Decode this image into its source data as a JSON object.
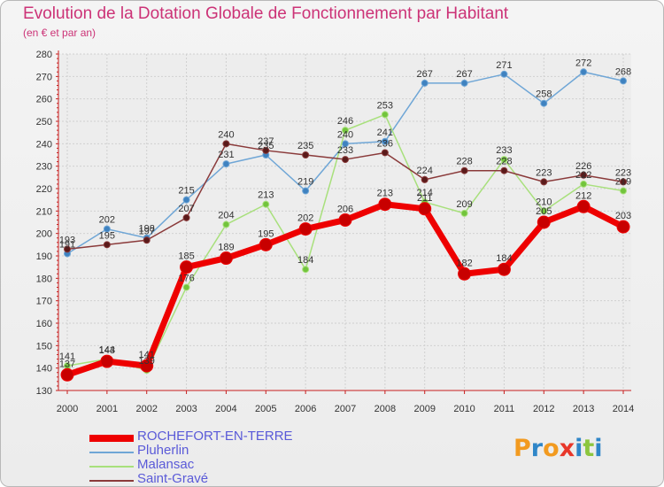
{
  "title": "Evolution de la Dotation Globale de Fonctionnement par Habitant",
  "subtitle": "(en € et par an)",
  "colors": {
    "title": "#cc3377",
    "axis": "#c81e1e",
    "grid": "#d0d0d0",
    "legend_text": "#5a5ad8"
  },
  "logo": {
    "text": "Proxiti",
    "letters": [
      {
        "char": "P",
        "color": "#f29a1f"
      },
      {
        "char": "r",
        "color": "#2f86c8"
      },
      {
        "char": "o",
        "color": "#f29a1f"
      },
      {
        "char": "x",
        "color": "#e8372a"
      },
      {
        "char": "i",
        "color": "#2f86c8"
      },
      {
        "char": "t",
        "color": "#8cc63f"
      },
      {
        "char": "i",
        "color": "#2f86c8"
      }
    ]
  },
  "chart_data": {
    "type": "line",
    "title": "Evolution de la Dotation Globale de Fonctionnement par Habitant",
    "subtitle": "(en € et par an)",
    "xlabel": "",
    "ylabel": "",
    "x": [
      2000,
      2001,
      2002,
      2003,
      2004,
      2005,
      2006,
      2007,
      2008,
      2009,
      2010,
      2011,
      2012,
      2013,
      2014
    ],
    "ylim": [
      130,
      280
    ],
    "yticks": [
      130,
      140,
      150,
      160,
      170,
      180,
      190,
      200,
      210,
      220,
      230,
      240,
      250,
      260,
      270,
      280
    ],
    "grid": true,
    "legend_position": "bottom-left",
    "series": [
      {
        "name": "ROCHEFORT-EN-TERRE",
        "color": "#ee0000",
        "marker_fill": "#c80000",
        "line_width": 7,
        "marker_r": 7,
        "values": [
          137,
          143,
          141,
          185,
          189,
          195,
          202,
          206,
          213,
          211,
          182,
          184,
          205,
          212,
          203
        ],
        "labels": [
          "137",
          "143",
          "141",
          "185",
          "189",
          "195",
          "202",
          "206",
          "213",
          "211",
          "182",
          "184",
          "205",
          "212",
          "203"
        ]
      },
      {
        "name": "Pluherlin",
        "color": "#6fa6d6",
        "marker_fill": "#3f82c0",
        "line_width": 1.5,
        "marker_r": 3.5,
        "values": [
          191,
          202,
          198,
          215,
          231,
          235,
          219,
          240,
          241,
          267,
          267,
          271,
          258,
          272,
          268
        ],
        "labels": [
          "191",
          "202",
          "198",
          "215",
          "231",
          "235",
          "219",
          "240",
          "241",
          "267",
          "267",
          "271",
          "258",
          "272",
          "268"
        ]
      },
      {
        "name": "Malansac",
        "color": "#a8e07c",
        "marker_fill": "#72c43c",
        "line_width": 1.5,
        "marker_r": 3.5,
        "values": [
          141,
          144,
          139,
          176,
          204,
          213,
          184,
          246,
          253,
          214,
          209,
          233,
          210,
          222,
          219
        ],
        "labels": [
          "141",
          "144",
          "139",
          "176",
          "204",
          "213",
          "184",
          "246",
          "253",
          "214",
          "209",
          "233",
          "210",
          "222",
          "219"
        ]
      },
      {
        "name": "Saint-Gravé",
        "color": "#8a3a3a",
        "marker_fill": "#5a1a1a",
        "line_width": 1.5,
        "marker_r": 3.5,
        "values": [
          193,
          195,
          197,
          207,
          240,
          237,
          235,
          233,
          236,
          224,
          228,
          228,
          223,
          226,
          223
        ],
        "labels": [
          "193",
          "195",
          "197",
          "207",
          "240",
          "237",
          "235",
          "233",
          "236",
          "224",
          "228",
          "228",
          "223",
          "226",
          "223"
        ]
      }
    ]
  }
}
